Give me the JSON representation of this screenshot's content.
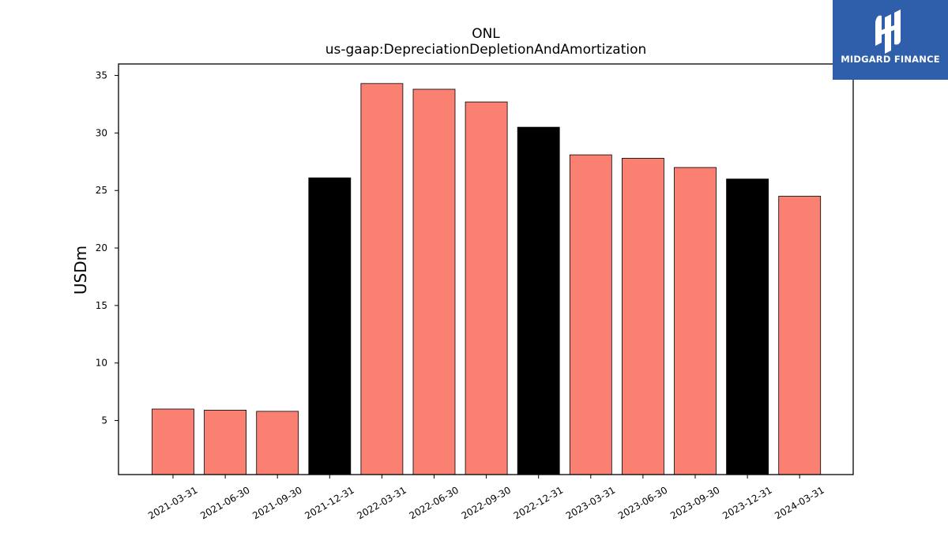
{
  "chart_data": {
    "type": "bar",
    "title": "ONL",
    "subtitle": "us-gaap:DepreciationDepletionAndAmortization",
    "xlabel": "",
    "ylabel": "USDm",
    "ylim": [
      0.3,
      36
    ],
    "yticks": [
      5,
      10,
      15,
      20,
      25,
      30,
      35
    ],
    "categories": [
      "2021-03-31",
      "2021-06-30",
      "2021-09-30",
      "2021-12-31",
      "2022-03-31",
      "2022-06-30",
      "2022-09-30",
      "2022-12-31",
      "2023-03-31",
      "2023-06-30",
      "2023-09-30",
      "2023-12-31",
      "2024-03-31"
    ],
    "values": [
      6.0,
      5.9,
      5.8,
      26.1,
      34.3,
      33.8,
      32.7,
      30.5,
      28.1,
      27.8,
      27.0,
      26.0,
      24.5
    ],
    "bar_colors": [
      "#fa8072",
      "#fa8072",
      "#fa8072",
      "#000000",
      "#fa8072",
      "#fa8072",
      "#fa8072",
      "#000000",
      "#fa8072",
      "#fa8072",
      "#fa8072",
      "#000000",
      "#fa8072"
    ],
    "grid": false,
    "legend": "none"
  },
  "logo": {
    "text": "MIDGARD FINANCE",
    "background": "#2f5eab"
  }
}
